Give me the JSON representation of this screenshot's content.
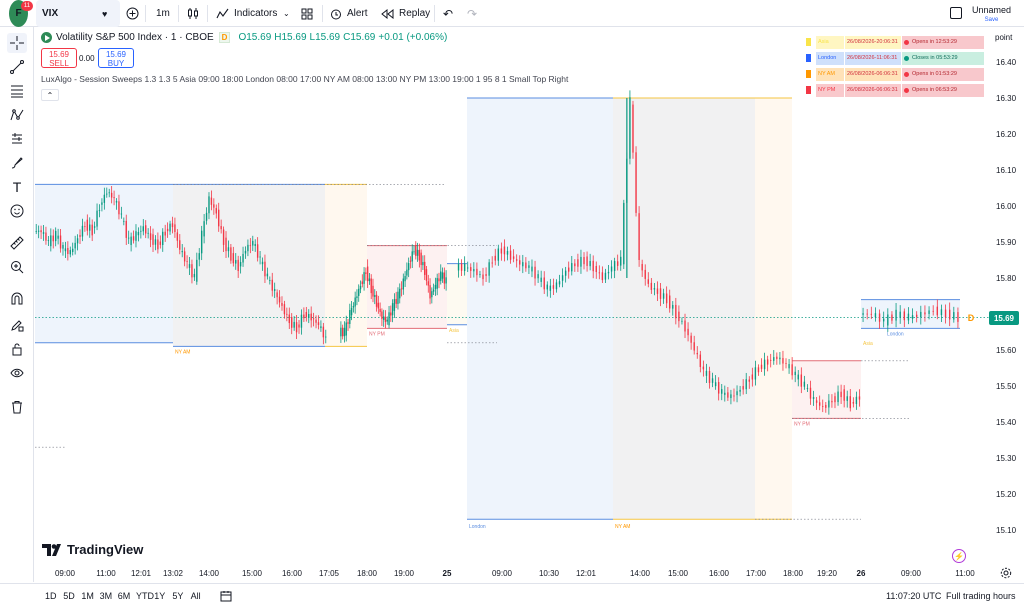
{
  "topbar": {
    "avatar_letter": "F",
    "avatar_badge": "11",
    "symbol": "VIX",
    "interval": "1m",
    "indicators_label": "Indicators",
    "alert_label": "Alert",
    "replay_label": "Replay",
    "layout_name": "Unnamed",
    "save_label": "Save"
  },
  "legend": {
    "title": "Volatility S&P 500 Index · 1 · CBOE",
    "marker": "D",
    "open": "O15.69",
    "high": "H15.69",
    "low": "L15.69",
    "close": "C15.69",
    "change": "+0.01 (+0.06%)",
    "sell_price": "15.69",
    "sell_label": "SELL",
    "spread": "0.00",
    "buy_price": "15.69",
    "buy_label": "BUY",
    "indicator": "LuxAlgo - Session Sweeps 1.3 1.3 5 Asia 09:00 18:00 London 08:00 17:00 NY AM 08:00 13:00 NY PM 13:00 19:00 1 95 8 1 Small Top Right"
  },
  "sessions_table": [
    {
      "name": "Asia",
      "time": "26/08/2026-20:06:31",
      "status": "Opens in 12:53:29",
      "color": "#f9e44a",
      "bg": "#fff6c2",
      "status_bg": "#f8c8cc",
      "dot": "#f23645"
    },
    {
      "name": "London",
      "time": "26/08/2026-11:06:31",
      "status": "Closes in 05:53:29",
      "color": "#2962ff",
      "bg": "#cfe0fb",
      "status_bg": "#c9eee0",
      "dot": "#089981"
    },
    {
      "name": "NY AM",
      "time": "26/08/2026-06:06:31",
      "status": "Opens in 01:53:29",
      "color": "#ff9800",
      "bg": "#ffe2b8",
      "status_bg": "#f8c8cc",
      "dot": "#f23645"
    },
    {
      "name": "NY PM",
      "time": "26/08/2026-06:06:31",
      "status": "Opens in 06:53:29",
      "color": "#f23645",
      "bg": "#f9c9cc",
      "status_bg": "#f8c8cc",
      "dot": "#f23645"
    }
  ],
  "price_axis": {
    "unit_label": "point",
    "current_price": "15.69",
    "current_marker": "D",
    "ticks": [
      "16.40",
      "16.30",
      "16.20",
      "16.10",
      "16.00",
      "15.90",
      "15.80",
      "15.70",
      "15.60",
      "15.50",
      "15.40",
      "15.30",
      "15.20",
      "15.10"
    ]
  },
  "time_axis": {
    "ticks": [
      "09:00",
      "11:00",
      "12:01",
      "13:02",
      "14:00",
      "15:00",
      "16:00",
      "17:05",
      "18:00",
      "19:00",
      "25",
      "09:00",
      "10:30",
      "12:01",
      "14:00",
      "15:00",
      "16:00",
      "17:00",
      "18:00",
      "19:20",
      "26",
      "09:00",
      "11:00"
    ]
  },
  "session_labels": {
    "asia": "Asia",
    "london": "London",
    "ny_am": "NY AM",
    "ny_pm": "NY PM"
  },
  "chart_data": {
    "type": "candlestick",
    "symbol": "VIX",
    "interval": "1m",
    "ylim": [
      15.05,
      16.45
    ],
    "y_ticks": [
      16.4,
      16.3,
      16.2,
      16.1,
      16.0,
      15.9,
      15.8,
      15.7,
      15.6,
      15.5,
      15.4,
      15.3,
      15.2,
      15.1
    ],
    "close_path": [
      15.93,
      15.9,
      15.92,
      15.88,
      15.87,
      15.91,
      15.95,
      15.93,
      16.0,
      16.04,
      16.02,
      15.97,
      15.9,
      15.92,
      15.94,
      15.91,
      15.89,
      15.93,
      15.95,
      15.88,
      15.84,
      15.8,
      15.92,
      16.02,
      15.98,
      15.9,
      15.86,
      15.83,
      15.88,
      15.9,
      15.85,
      15.8,
      15.76,
      15.72,
      15.68,
      15.66,
      15.7,
      15.69,
      15.67,
      15.63,
      15.65,
      15.7,
      15.74,
      15.78,
      15.82,
      15.77,
      15.73,
      15.69,
      15.68,
      15.72,
      15.75,
      15.79,
      15.84,
      15.88,
      15.86,
      15.82,
      15.75,
      15.78,
      15.81,
      15.79,
      15.83,
      15.82,
      15.8,
      15.85,
      15.88,
      15.86,
      15.84,
      15.83,
      15.8,
      15.77,
      15.78,
      15.82,
      15.84,
      15.85,
      15.83,
      15.8,
      15.83,
      15.85,
      16.29,
      15.84,
      15.78,
      15.76,
      15.74,
      15.7,
      15.66,
      15.6,
      15.54,
      15.51,
      15.48,
      15.47,
      15.49,
      15.52,
      15.55,
      15.57,
      15.58,
      15.56,
      15.53,
      15.5,
      15.46,
      15.44,
      15.46,
      15.48,
      15.45,
      15.47,
      15.7,
      15.68,
      15.7,
      15.69,
      15.7,
      15.71,
      15.7,
      15.69
    ],
    "boxes": [
      {
        "session": "Asia",
        "time_start": "08:00",
        "time_end": "13:02",
        "high": 16.06,
        "low": 15.62
      },
      {
        "session": "London",
        "time_start": "13:02",
        "time_end": "16:40",
        "high": 16.06,
        "low": 15.61
      },
      {
        "session": "NY AM",
        "time_start": "16:40",
        "time_end": "18:00",
        "high": 16.06,
        "low": 15.61
      },
      {
        "session": "NY PM",
        "time_start": "18:00",
        "time_end": "19:40",
        "high": 15.89,
        "low": 15.66
      },
      {
        "session": "Asia",
        "time_start": "19:40",
        "time_end": "25 08:00",
        "high": 15.84,
        "low": 15.67
      },
      {
        "session": "London",
        "time_start": "25 08:00",
        "time_end": "25 13:30",
        "high": 16.3,
        "low": 15.13
      },
      {
        "session": "NY AM",
        "time_start": "25 13:30",
        "time_end": "25 17:00",
        "high": 16.3,
        "low": 15.13
      },
      {
        "session": "NY AM",
        "time_start": "25 17:00",
        "time_end": "25 18:00",
        "high": 16.3,
        "low": 15.13
      },
      {
        "session": "NY PM",
        "time_start": "25 18:00",
        "time_end": "25 19:40",
        "high": 15.57,
        "low": 15.41
      },
      {
        "session": "London",
        "time_start": "26 08:00",
        "time_end": "26 11:06",
        "high": 15.74,
        "low": 15.66
      }
    ]
  },
  "bottombar": {
    "ranges": [
      "1D",
      "5D",
      "1M",
      "3M",
      "6M",
      "YTD",
      "1Y",
      "5Y",
      "All"
    ],
    "clock": "11:07:20 UTC",
    "trading_hours": "Full trading hours"
  },
  "branding": {
    "logo_text": "TradingView"
  }
}
